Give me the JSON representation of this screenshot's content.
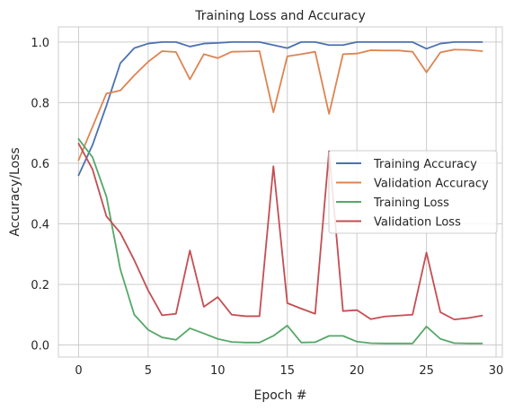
{
  "chart_data": {
    "type": "line",
    "title": "Training Loss and Accuracy",
    "xlabel": "Epoch #",
    "ylabel": "Accuracy/Loss",
    "xlim": [
      -1.45,
      30.45
    ],
    "ylim": [
      -0.04,
      1.05
    ],
    "xticks": [
      0,
      5,
      10,
      15,
      20,
      25,
      30
    ],
    "yticks": [
      0.0,
      0.2,
      0.4,
      0.6,
      0.8,
      1.0
    ],
    "xtick_labels": [
      "0",
      "5",
      "10",
      "15",
      "20",
      "25",
      "30"
    ],
    "ytick_labels": [
      "0.0",
      "0.2",
      "0.4",
      "0.6",
      "0.8",
      "1.0"
    ],
    "grid": true,
    "legend_position": "center-right",
    "x": [
      0,
      1,
      2,
      3,
      4,
      5,
      6,
      7,
      8,
      9,
      10,
      11,
      12,
      13,
      14,
      15,
      16,
      17,
      18,
      19,
      20,
      21,
      22,
      23,
      24,
      25,
      26,
      27,
      28,
      29
    ],
    "series": [
      {
        "name": "Training Accuracy",
        "color": "#4c72b0",
        "values": [
          0.56,
          0.66,
          0.79,
          0.93,
          0.98,
          0.995,
          1.0,
          1.0,
          0.985,
          0.995,
          0.997,
          1.0,
          1.0,
          1.0,
          0.99,
          0.98,
          1.0,
          1.0,
          0.99,
          0.99,
          1.0,
          1.0,
          1.0,
          1.0,
          1.0,
          0.978,
          0.995,
          1.0,
          1.0,
          1.0
        ]
      },
      {
        "name": "Validation Accuracy",
        "color": "#dd8452",
        "values": [
          0.61,
          0.72,
          0.83,
          0.84,
          0.89,
          0.935,
          0.97,
          0.967,
          0.877,
          0.96,
          0.947,
          0.968,
          0.969,
          0.97,
          0.768,
          0.953,
          0.96,
          0.968,
          0.763,
          0.96,
          0.962,
          0.973,
          0.972,
          0.972,
          0.968,
          0.9,
          0.966,
          0.975,
          0.974,
          0.97
        ]
      },
      {
        "name": "Training Loss",
        "color": "#55a868",
        "values": [
          0.68,
          0.62,
          0.49,
          0.25,
          0.1,
          0.05,
          0.025,
          0.017,
          0.055,
          0.038,
          0.02,
          0.01,
          0.008,
          0.008,
          0.03,
          0.064,
          0.008,
          0.009,
          0.03,
          0.03,
          0.011,
          0.006,
          0.005,
          0.005,
          0.005,
          0.061,
          0.02,
          0.006,
          0.005,
          0.005
        ]
      },
      {
        "name": "Validation Loss",
        "color": "#c44e52",
        "values": [
          0.665,
          0.58,
          0.425,
          0.37,
          0.28,
          0.18,
          0.098,
          0.103,
          0.312,
          0.126,
          0.158,
          0.1,
          0.095,
          0.095,
          0.59,
          0.138,
          0.12,
          0.103,
          0.64,
          0.112,
          0.115,
          0.085,
          0.094,
          0.097,
          0.1,
          0.305,
          0.108,
          0.084,
          0.089,
          0.097
        ]
      }
    ]
  }
}
